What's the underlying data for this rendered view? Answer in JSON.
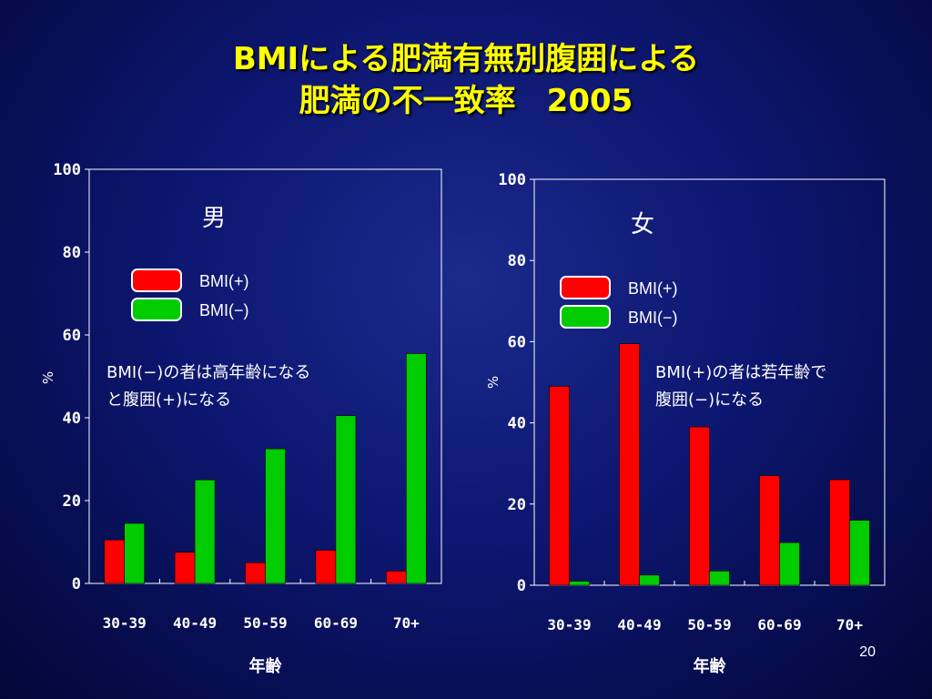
{
  "title": {
    "line1": "BMIによる肥満有無別腹囲による",
    "line2": "肥満の不一致率　2005"
  },
  "page_number": "20",
  "colors": {
    "bmi_plus": "#ff0000",
    "bmi_minus": "#00cc00",
    "title": "#ffff00",
    "text": "#ffffff"
  },
  "chart_data": [
    {
      "type": "bar",
      "panel_label": "男",
      "categories": [
        "30-39",
        "40-49",
        "50-59",
        "60-69",
        "70+"
      ],
      "series": [
        {
          "name": "BMI(+)",
          "values": [
            10.5,
            7.5,
            5,
            8,
            3
          ]
        },
        {
          "name": "BMI(−)",
          "values": [
            14.5,
            25,
            32.5,
            40.5,
            55.5
          ]
        }
      ],
      "xlabel": "年齢",
      "ylabel": "%",
      "ylim": [
        0,
        100
      ],
      "yticks": [
        "0",
        "20",
        "40",
        "60",
        "80",
        "100"
      ],
      "annotation": [
        "BMI(−)の者は高年齢になる",
        "と腹囲(+)になる"
      ],
      "legend": "upper-left",
      "grid": false
    },
    {
      "type": "bar",
      "panel_label": "女",
      "categories": [
        "30-39",
        "40-49",
        "50-59",
        "60-69",
        "70+"
      ],
      "series": [
        {
          "name": "BMI(+)",
          "values": [
            49,
            59.5,
            39,
            27,
            26
          ]
        },
        {
          "name": "BMI(−)",
          "values": [
            1,
            2.5,
            3.5,
            10.5,
            16
          ]
        }
      ],
      "xlabel": "年齢",
      "ylabel": "%",
      "ylim": [
        0,
        100
      ],
      "yticks": [
        "0",
        "20",
        "40",
        "60",
        "80",
        "100"
      ],
      "annotation": [
        "BMI(+)の者は若年齢で",
        "腹囲(−)になる"
      ],
      "legend": "upper-left",
      "grid": false
    }
  ]
}
